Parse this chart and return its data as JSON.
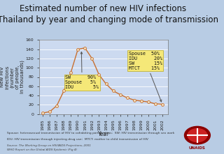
{
  "title": "Estimated number of new HIV infections\nin Thailand by year and changing mode of transmission",
  "xlabel": "Year",
  "ylabel": "New HIV\ninfections\n(number\nof people,\nin thousands)",
  "background_color": "#b8cce4",
  "plot_bg_color": "#ccdaf0",
  "years": [
    1985,
    1986,
    1987,
    1988,
    1989,
    1990,
    1991,
    1992,
    1993,
    1994,
    1995,
    1996,
    1997,
    1998,
    1999,
    2000,
    2001,
    2002
  ],
  "values": [
    2,
    5,
    18,
    50,
    90,
    140,
    143,
    120,
    85,
    65,
    50,
    42,
    35,
    30,
    28,
    26,
    22,
    21
  ],
  "line_color": "#c87030",
  "marker_color": "#f0e0c0",
  "marker_edge_color": "#c87030",
  "ylim": [
    0,
    160
  ],
  "yticks": [
    0,
    20,
    40,
    60,
    80,
    100,
    120,
    140,
    160
  ],
  "footnote1": "Spouse: heterosexual transmission of HIV to cohabiting partnerships;  SW: HIV transmission through sex work",
  "footnote2": "IDU: HIV transmission through injecting drug use;  MTCT: mother to child transmission of HIV",
  "footnote3": "Source: The Working Group on HIV/AIDS Projections, 2001",
  "footnote4": "WHO Report on the Global AIDS Epidemic (Fig 4)",
  "title_fontsize": 8.5,
  "axis_fontsize": 5,
  "tick_fontsize": 4.5
}
